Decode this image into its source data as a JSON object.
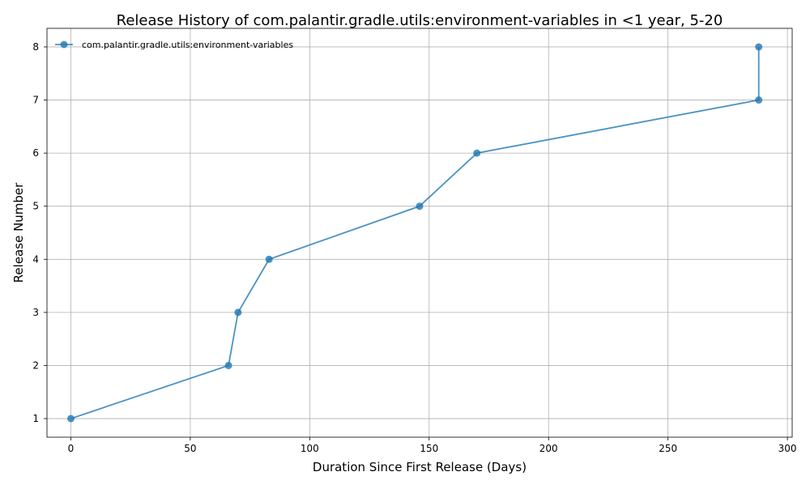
{
  "chart_data": {
    "type": "line",
    "title": "Release History of com.palantir.gradle.utils:environment-variables in <1 year, 5-20",
    "xlabel": "Duration Since First Release (Days)",
    "ylabel": "Release Number",
    "xlim": [
      -10,
      302
    ],
    "ylim": [
      0.65,
      8.35
    ],
    "xticks": [
      0,
      50,
      100,
      150,
      200,
      250,
      300
    ],
    "yticks": [
      1,
      2,
      3,
      4,
      5,
      6,
      7,
      8
    ],
    "grid": true,
    "legend_position": "upper-left",
    "series": [
      {
        "name": "com.palantir.gradle.utils:environment-variables",
        "color": "#1f77b4",
        "x": [
          0,
          66,
          70,
          83,
          146,
          170,
          288,
          288
        ],
        "y": [
          1,
          2,
          3,
          4,
          5,
          6,
          7,
          8
        ]
      }
    ]
  }
}
